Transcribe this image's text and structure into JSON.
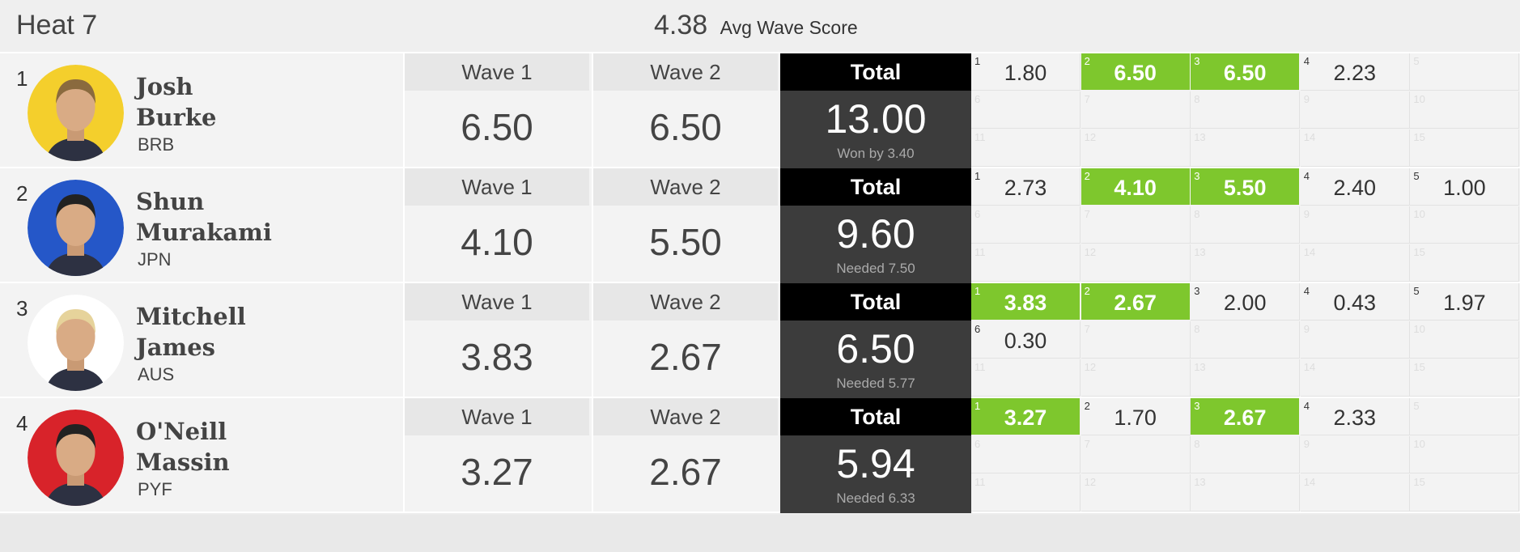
{
  "heat": {
    "title": "Heat 7",
    "avg_value": "4.38",
    "avg_label": "Avg Wave Score"
  },
  "surfers": [
    {
      "rank": "1",
      "first": "Josh",
      "last": "Burke",
      "country": "BRB",
      "avatar_color": "#f4cf2c",
      "wave1_label": "Wave 1",
      "wave1": "6.50",
      "wave2_label": "Wave 2",
      "wave2": "6.50",
      "total_label": "Total",
      "total": "13.00",
      "note": "Won by 3.40",
      "waves": [
        {
          "n": "1",
          "score": "1.80",
          "best": false
        },
        {
          "n": "2",
          "score": "6.50",
          "best": true
        },
        {
          "n": "3",
          "score": "6.50",
          "best": true
        },
        {
          "n": "4",
          "score": "2.23",
          "best": false
        },
        {
          "n": "5",
          "score": "",
          "best": false
        },
        {
          "n": "6",
          "score": "",
          "best": false
        },
        {
          "n": "7",
          "score": "",
          "best": false
        },
        {
          "n": "8",
          "score": "",
          "best": false
        },
        {
          "n": "9",
          "score": "",
          "best": false
        },
        {
          "n": "10",
          "score": "",
          "best": false
        },
        {
          "n": "11",
          "score": "",
          "best": false
        },
        {
          "n": "12",
          "score": "",
          "best": false
        },
        {
          "n": "13",
          "score": "",
          "best": false
        },
        {
          "n": "14",
          "score": "",
          "best": false
        },
        {
          "n": "15",
          "score": "",
          "best": false
        }
      ]
    },
    {
      "rank": "2",
      "first": "Shun",
      "last": "Murakami",
      "country": "JPN",
      "avatar_color": "#2557c8",
      "wave1_label": "Wave 1",
      "wave1": "4.10",
      "wave2_label": "Wave 2",
      "wave2": "5.50",
      "total_label": "Total",
      "total": "9.60",
      "note": "Needed 7.50",
      "waves": [
        {
          "n": "1",
          "score": "2.73",
          "best": false
        },
        {
          "n": "2",
          "score": "4.10",
          "best": true
        },
        {
          "n": "3",
          "score": "5.50",
          "best": true
        },
        {
          "n": "4",
          "score": "2.40",
          "best": false
        },
        {
          "n": "5",
          "score": "1.00",
          "best": false
        },
        {
          "n": "6",
          "score": "",
          "best": false
        },
        {
          "n": "7",
          "score": "",
          "best": false
        },
        {
          "n": "8",
          "score": "",
          "best": false
        },
        {
          "n": "9",
          "score": "",
          "best": false
        },
        {
          "n": "10",
          "score": "",
          "best": false
        },
        {
          "n": "11",
          "score": "",
          "best": false
        },
        {
          "n": "12",
          "score": "",
          "best": false
        },
        {
          "n": "13",
          "score": "",
          "best": false
        },
        {
          "n": "14",
          "score": "",
          "best": false
        },
        {
          "n": "15",
          "score": "",
          "best": false
        }
      ]
    },
    {
      "rank": "3",
      "first": "Mitchell",
      "last": "James",
      "country": "AUS",
      "avatar_color": "#ffffff",
      "wave1_label": "Wave 1",
      "wave1": "3.83",
      "wave2_label": "Wave 2",
      "wave2": "2.67",
      "total_label": "Total",
      "total": "6.50",
      "note": "Needed 5.77",
      "waves": [
        {
          "n": "1",
          "score": "3.83",
          "best": true
        },
        {
          "n": "2",
          "score": "2.67",
          "best": true
        },
        {
          "n": "3",
          "score": "2.00",
          "best": false
        },
        {
          "n": "4",
          "score": "0.43",
          "best": false
        },
        {
          "n": "5",
          "score": "1.97",
          "best": false
        },
        {
          "n": "6",
          "score": "0.30",
          "best": false
        },
        {
          "n": "7",
          "score": "",
          "best": false
        },
        {
          "n": "8",
          "score": "",
          "best": false
        },
        {
          "n": "9",
          "score": "",
          "best": false
        },
        {
          "n": "10",
          "score": "",
          "best": false
        },
        {
          "n": "11",
          "score": "",
          "best": false
        },
        {
          "n": "12",
          "score": "",
          "best": false
        },
        {
          "n": "13",
          "score": "",
          "best": false
        },
        {
          "n": "14",
          "score": "",
          "best": false
        },
        {
          "n": "15",
          "score": "",
          "best": false
        }
      ]
    },
    {
      "rank": "4",
      "first": "O'Neill",
      "last": "Massin",
      "country": "PYF",
      "avatar_color": "#d8232a",
      "wave1_label": "Wave 1",
      "wave1": "3.27",
      "wave2_label": "Wave 2",
      "wave2": "2.67",
      "total_label": "Total",
      "total": "5.94",
      "note": "Needed 6.33",
      "waves": [
        {
          "n": "1",
          "score": "3.27",
          "best": true
        },
        {
          "n": "2",
          "score": "1.70",
          "best": false
        },
        {
          "n": "3",
          "score": "2.67",
          "best": true
        },
        {
          "n": "4",
          "score": "2.33",
          "best": false
        },
        {
          "n": "5",
          "score": "",
          "best": false
        },
        {
          "n": "6",
          "score": "",
          "best": false
        },
        {
          "n": "7",
          "score": "",
          "best": false
        },
        {
          "n": "8",
          "score": "",
          "best": false
        },
        {
          "n": "9",
          "score": "",
          "best": false
        },
        {
          "n": "10",
          "score": "",
          "best": false
        },
        {
          "n": "11",
          "score": "",
          "best": false
        },
        {
          "n": "12",
          "score": "",
          "best": false
        },
        {
          "n": "13",
          "score": "",
          "best": false
        },
        {
          "n": "14",
          "score": "",
          "best": false
        },
        {
          "n": "15",
          "score": "",
          "best": false
        }
      ]
    }
  ]
}
